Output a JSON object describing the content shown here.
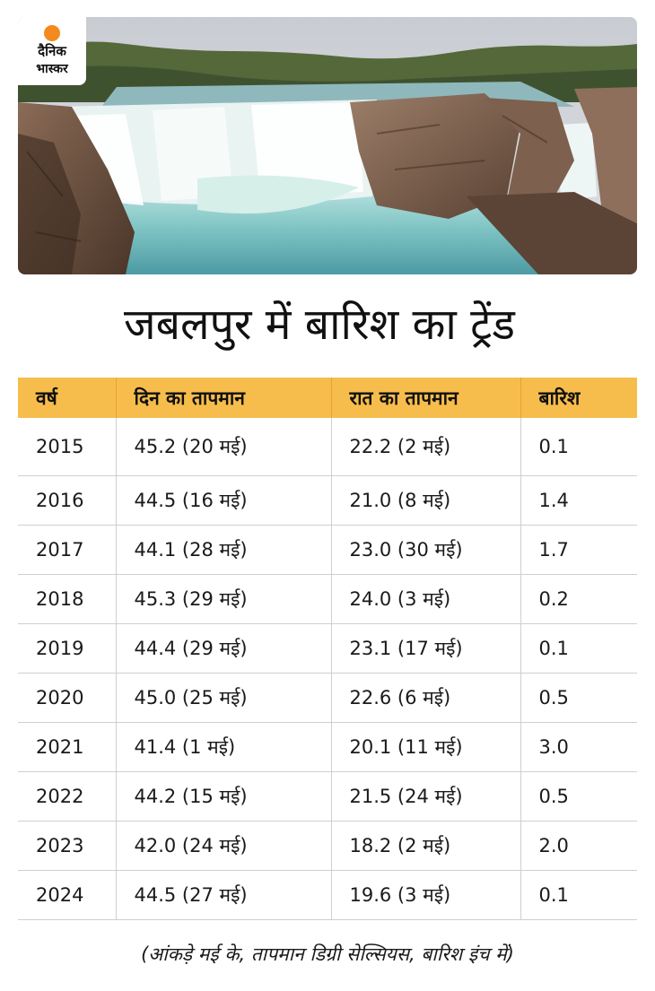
{
  "logo": {
    "line1": "दैनिक",
    "line2": "भास्कर",
    "accent": "#f28a1e"
  },
  "title": "जबलपुर में बारिश का ट्रेंड",
  "table": {
    "headers": [
      "वर्ष",
      "दिन का तापमान",
      "रात का तापमान",
      "बारिश"
    ],
    "header_color": "#f7bd4c",
    "rows": [
      [
        "2015",
        "45.2 (20 मई)",
        "22.2 (2 मई)",
        "0.1"
      ],
      [
        "2016",
        "44.5 (16 मई)",
        "21.0 (8 मई)",
        "1.4"
      ],
      [
        "2017",
        "44.1 (28 मई)",
        "23.0 (30 मई)",
        "1.7"
      ],
      [
        "2018",
        "45.3 (29 मई)",
        "24.0 (3 मई)",
        "0.2"
      ],
      [
        "2019",
        "44.4 (29 मई)",
        "23.1 (17 मई)",
        "0.1"
      ],
      [
        "2020",
        "45.0 (25 मई)",
        "22.6 (6 मई)",
        "0.5"
      ],
      [
        "2021",
        "41.4 (1 मई)",
        "20.1 (11 मई)",
        "3.0"
      ],
      [
        "2022",
        "44.2 (15 मई)",
        "21.5 (24 मई)",
        "0.5"
      ],
      [
        "2023",
        "42.0 (24 मई)",
        "18.2 (2 मई)",
        "2.0"
      ],
      [
        "2024",
        "44.5 (27 मई)",
        "19.6 (3 मई)",
        "0.1"
      ]
    ]
  },
  "footnote": "(आंकड़े मई के, तापमान डिग्री सेल्सियस, बारिश इंच में)"
}
